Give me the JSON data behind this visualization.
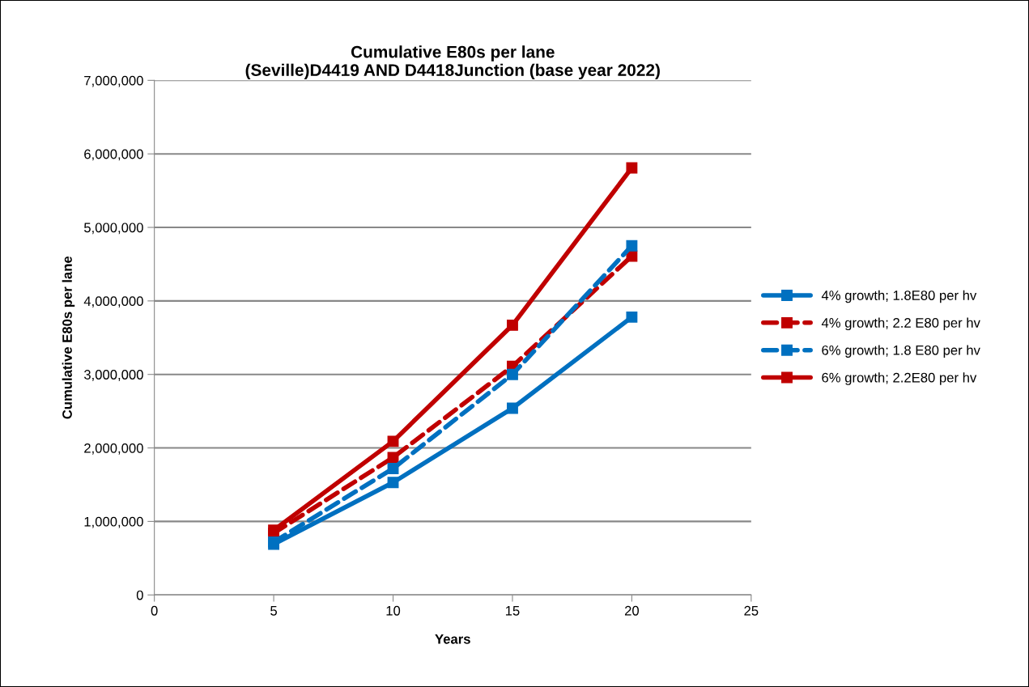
{
  "chart_data": {
    "type": "line",
    "title": "Cumulative E80s per lane\n(Seville)D4419 AND D4418Junction (base year 2022)",
    "xlabel": "Years",
    "ylabel": "Cumulative E80s per lane",
    "x": [
      5,
      10,
      15,
      20
    ],
    "series": [
      {
        "name": "4% growth; 1.8E80 per hv",
        "color": "#0070c0",
        "line_style": "solid",
        "values": [
          690000,
          1530000,
          2540000,
          3780000
        ]
      },
      {
        "name": "4% growth; 2.2 E80 per hv",
        "color": "#c00000",
        "line_style": "dashed",
        "values": [
          840000,
          1870000,
          3110000,
          4610000
        ]
      },
      {
        "name": "6% growth; 1.8 E80 per hv",
        "color": "#0070c0",
        "line_style": "dashed",
        "values": [
          720000,
          1720000,
          3000000,
          4750000
        ]
      },
      {
        "name": "6% growth; 2.2E80 per hv",
        "color": "#c00000",
        "line_style": "solid",
        "values": [
          880000,
          2090000,
          3670000,
          5810000
        ]
      }
    ],
    "xlim": [
      0,
      25
    ],
    "xticks": [
      0,
      5,
      10,
      15,
      20,
      25
    ],
    "ylim": [
      0,
      7000000
    ],
    "yticks": [
      0,
      {
        "value": 1000000,
        "label": "1,000,000"
      },
      {
        "value": 2000000,
        "label": "2,000,000"
      },
      {
        "value": 3000000,
        "label": "3,000,000"
      },
      {
        "value": 4000000,
        "label": "4,000,000"
      },
      {
        "value": 5000000,
        "label": "5,000,000"
      },
      {
        "value": 6000000,
        "label": "6,000,000"
      },
      {
        "value": 7000000,
        "label": "7,000,000"
      }
    ],
    "grid": "y",
    "legend": "right",
    "marker": "square"
  }
}
